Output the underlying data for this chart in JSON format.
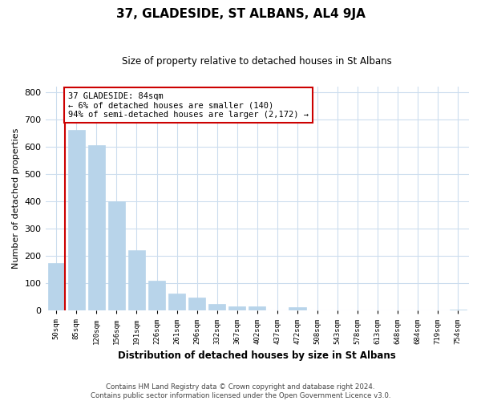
{
  "title": "37, GLADESIDE, ST ALBANS, AL4 9JA",
  "subtitle": "Size of property relative to detached houses in St Albans",
  "xlabel": "Distribution of detached houses by size in St Albans",
  "ylabel": "Number of detached properties",
  "bin_labels": [
    "50sqm",
    "85sqm",
    "120sqm",
    "156sqm",
    "191sqm",
    "226sqm",
    "261sqm",
    "296sqm",
    "332sqm",
    "367sqm",
    "402sqm",
    "437sqm",
    "472sqm",
    "508sqm",
    "543sqm",
    "578sqm",
    "613sqm",
    "648sqm",
    "684sqm",
    "719sqm",
    "754sqm"
  ],
  "bar_heights": [
    175,
    660,
    605,
    400,
    220,
    110,
    63,
    47,
    25,
    15,
    15,
    0,
    12,
    0,
    0,
    0,
    0,
    0,
    0,
    0,
    5
  ],
  "bar_color": "#b8d4ea",
  "marker_color": "#cc0000",
  "annotation_title": "37 GLADESIDE: 84sqm",
  "annotation_line1": "← 6% of detached houses are smaller (140)",
  "annotation_line2": "94% of semi-detached houses are larger (2,172) →",
  "annotation_box_color": "#ffffff",
  "annotation_box_edge": "#cc0000",
  "ylim": [
    0,
    820
  ],
  "yticks": [
    0,
    100,
    200,
    300,
    400,
    500,
    600,
    700,
    800
  ],
  "footer_line1": "Contains HM Land Registry data © Crown copyright and database right 2024.",
  "footer_line2": "Contains public sector information licensed under the Open Government Licence v3.0.",
  "bg_color": "#ffffff",
  "plot_bg_color": "#ffffff"
}
